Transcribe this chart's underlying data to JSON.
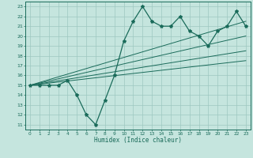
{
  "xlabel": "Humidex (Indice chaleur)",
  "bg_color": "#c5e5de",
  "grid_color": "#9dc8c0",
  "line_color": "#1a6b5a",
  "xlim": [
    -0.5,
    23.5
  ],
  "ylim": [
    10.5,
    23.5
  ],
  "xticks": [
    0,
    1,
    2,
    3,
    4,
    5,
    6,
    7,
    8,
    9,
    10,
    11,
    12,
    13,
    14,
    15,
    16,
    17,
    18,
    19,
    20,
    21,
    22,
    23
  ],
  "yticks": [
    11,
    12,
    13,
    14,
    15,
    16,
    17,
    18,
    19,
    20,
    21,
    22,
    23
  ],
  "main_x": [
    0,
    1,
    2,
    3,
    4,
    5,
    6,
    7,
    8,
    9,
    10,
    11,
    12,
    13,
    14,
    15,
    16,
    17,
    18,
    19,
    20,
    21,
    22,
    23
  ],
  "main_y": [
    15,
    15,
    15,
    15,
    15.5,
    14,
    12,
    11,
    13.5,
    16,
    19.5,
    21.5,
    23,
    21.5,
    21,
    21,
    22,
    20.5,
    20,
    19,
    20.5,
    21,
    22.5,
    21
  ],
  "trend_lines": [
    {
      "x": [
        0,
        23
      ],
      "y": [
        15.0,
        17.5
      ]
    },
    {
      "x": [
        0,
        23
      ],
      "y": [
        15.0,
        18.5
      ]
    },
    {
      "x": [
        0,
        23
      ],
      "y": [
        15.0,
        20.0
      ]
    },
    {
      "x": [
        0,
        23
      ],
      "y": [
        15.0,
        21.5
      ]
    }
  ]
}
